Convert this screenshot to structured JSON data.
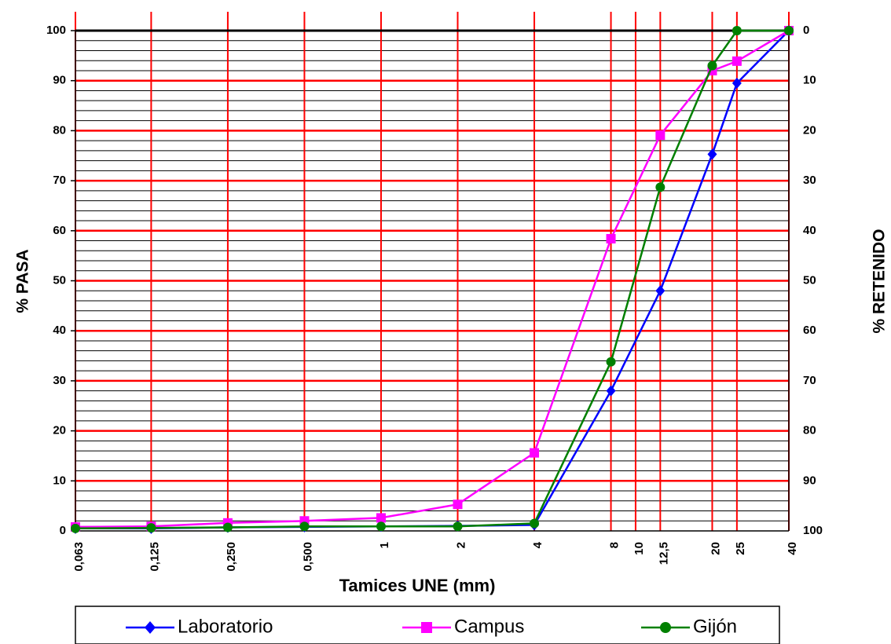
{
  "chart_data": {
    "type": "line",
    "xlabel": "Tamices UNE (mm)",
    "ylabel": "% PASA",
    "y2label": "% RETENIDO",
    "x_scale": "log",
    "x_ticks": [
      "0,063",
      "0,125",
      "0,250",
      "0,500",
      "1",
      "2",
      "4",
      "8",
      "10",
      "12,5",
      "20",
      "25",
      "40"
    ],
    "ylim": [
      0,
      100
    ],
    "y_ticks": [
      "0",
      "10",
      "20",
      "30",
      "40",
      "50",
      "60",
      "70",
      "80",
      "90",
      "100"
    ],
    "y2_ticks": [
      "100",
      "90",
      "80",
      "70",
      "60",
      "50",
      "40",
      "30",
      "20",
      "10",
      "0"
    ],
    "grid": "red major lines at sieve sizes and every 10%, black minor lines every 2%",
    "legend_position": "bottom",
    "series": [
      {
        "name": "Laboratorio",
        "color": "#0000ff",
        "marker": "diamond",
        "x": [
          0.063,
          0.125,
          0.25,
          0.5,
          1,
          2,
          4,
          8,
          12.5,
          20,
          25,
          40
        ],
        "y": [
          0.5,
          0.5,
          0.7,
          0.8,
          0.9,
          1.0,
          1.2,
          28,
          48,
          75.3,
          89.5,
          100
        ]
      },
      {
        "name": "Campus",
        "color": "#ff00ff",
        "marker": "square",
        "x": [
          0.063,
          0.125,
          0.25,
          0.5,
          1,
          2,
          4,
          8,
          12.5,
          20,
          25,
          40
        ],
        "y": [
          0.8,
          0.9,
          1.6,
          2.0,
          2.6,
          5.3,
          15.6,
          58.4,
          79.1,
          92.0,
          93.9,
          100
        ]
      },
      {
        "name": "Gijón",
        "color": "#008000",
        "marker": "circle",
        "x": [
          0.063,
          0.125,
          0.25,
          0.5,
          1,
          2,
          4,
          8,
          12.5,
          20,
          25,
          40
        ],
        "y": [
          0.5,
          0.6,
          0.7,
          0.9,
          0.9,
          0.9,
          1.5,
          33.8,
          68.7,
          93.0,
          100,
          100
        ]
      }
    ]
  }
}
